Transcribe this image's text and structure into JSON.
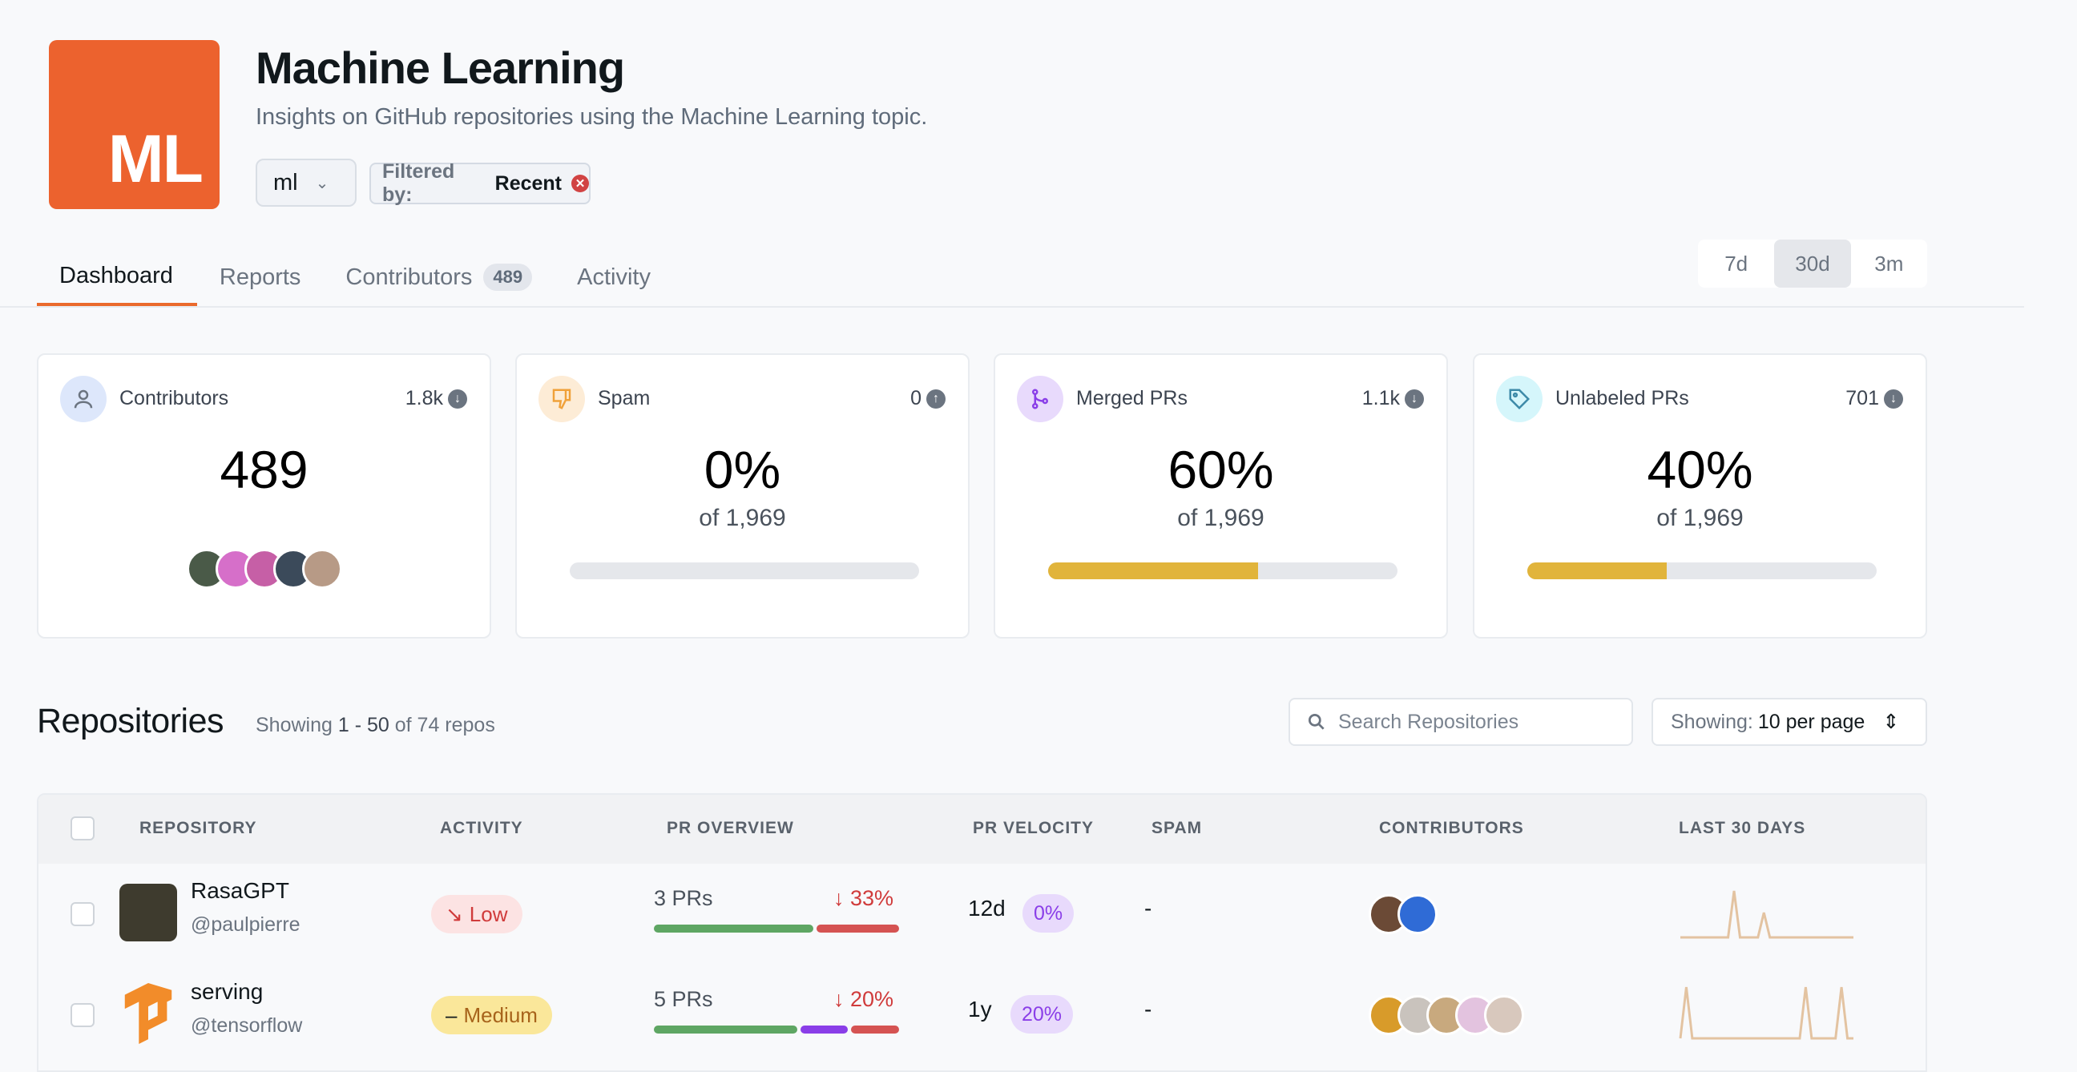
{
  "header": {
    "logo_text": "ML",
    "logo_color": "#ec622e",
    "title": "Machine Learning",
    "subtitle": "Insights on GitHub repositories using the Machine Learning topic.",
    "workspace_select": "ml",
    "filter_prefix": "Filtered by:",
    "filter_value": "Recent"
  },
  "tabs": [
    {
      "label": "Dashboard",
      "active": true
    },
    {
      "label": "Reports"
    },
    {
      "label": "Contributors",
      "count": "489"
    },
    {
      "label": "Activity"
    }
  ],
  "range": {
    "options": [
      "7d",
      "30d",
      "3m"
    ],
    "selected": "30d"
  },
  "cards": [
    {
      "label": "Contributors",
      "icon": "user-icon",
      "delta": "1.8k",
      "delta_dir": "down",
      "value": "489",
      "icon_bg": "#dde7fb"
    },
    {
      "label": "Spam",
      "icon": "thumbs-down-icon",
      "delta": "0",
      "delta_dir": "up",
      "value": "0%",
      "of": "of 1,969",
      "progress": 0,
      "icon_bg": "#fdecd6"
    },
    {
      "label": "Merged PRs",
      "icon": "git-merge-icon",
      "delta": "1.1k",
      "delta_dir": "down",
      "value": "60%",
      "of": "of 1,969",
      "progress": 60,
      "icon_bg": "#e8dafc"
    },
    {
      "label": "Unlabeled PRs",
      "icon": "tag-icon",
      "delta": "701",
      "delta_dir": "down",
      "value": "40%",
      "of": "of 1,969",
      "progress": 40,
      "icon_bg": "#d5f6fb"
    }
  ],
  "repos_section": {
    "title": "Repositories",
    "showing_prefix": "Showing",
    "range": "1 - 50",
    "of_text": "of 74 repos",
    "search_placeholder": "Search Repositories",
    "per_page_prefix": "Showing:",
    "per_page_value": "10 per page"
  },
  "table": {
    "headers": [
      "REPOSITORY",
      "ACTIVITY",
      "PR OVERVIEW",
      "PR VELOCITY",
      "SPAM",
      "CONTRIBUTORS",
      "LAST 30 DAYS"
    ],
    "rows": [
      {
        "name": "RasaGPT",
        "org": "@paulpierre",
        "activity": "Low",
        "activity_icon": "trend-down-icon",
        "prs": "3 PRs",
        "change": "↓ 33%",
        "velocity": "12d",
        "velocity_pct": "0%",
        "spam": "-",
        "segments": [
          {
            "share": 66,
            "color": "#5ea663"
          },
          {
            "share": 34,
            "color": "#d55352"
          }
        ],
        "sparkline": [
          0,
          0,
          0,
          0,
          0,
          0,
          0,
          0,
          0,
          3,
          0,
          0,
          0,
          0,
          1.6,
          0,
          0,
          0,
          0,
          0,
          0,
          0,
          0,
          0,
          0,
          0,
          0,
          0,
          0,
          0
        ]
      },
      {
        "name": "serving",
        "org": "@tensorflow",
        "activity": "Medium",
        "activity_icon": "dash-icon",
        "prs": "5 PRs",
        "change": "↓ 20%",
        "velocity": "1y",
        "velocity_pct": "20%",
        "spam": "-",
        "segments": [
          {
            "share": 60,
            "color": "#5ea663"
          },
          {
            "share": 20,
            "color": "#8a3ee8"
          },
          {
            "share": 20,
            "color": "#d55352"
          }
        ],
        "sparkline": [
          0,
          3,
          0,
          0,
          0,
          0,
          0,
          0,
          0,
          0,
          0,
          0,
          0,
          0,
          0,
          0,
          0,
          0,
          0,
          0,
          0,
          3,
          0,
          0,
          0,
          0,
          0,
          3,
          0,
          0
        ]
      }
    ]
  }
}
